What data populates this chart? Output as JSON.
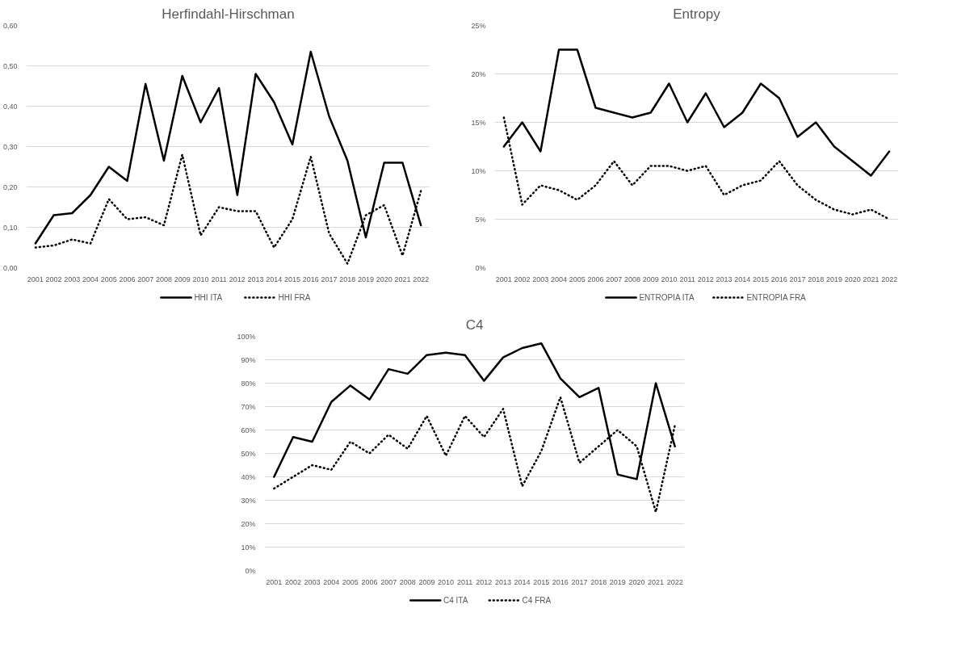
{
  "chart_data": [
    {
      "type": "line",
      "title": "Herfindahl-Hirschman",
      "categories": [
        "2001",
        "2002",
        "2003",
        "2004",
        "2005",
        "2006",
        "2007",
        "2008",
        "2009",
        "2010",
        "2011",
        "2012",
        "2013",
        "2014",
        "2015",
        "2016",
        "2017",
        "2018",
        "2019",
        "2020",
        "2021",
        "2022"
      ],
      "series": [
        {
          "name": "HHI ITA",
          "color": "#000000",
          "line_style": "solid",
          "values": [
            0.06,
            0.13,
            0.135,
            0.18,
            0.25,
            0.215,
            0.455,
            0.265,
            0.475,
            0.36,
            0.445,
            0.18,
            0.48,
            0.41,
            0.305,
            0.535,
            0.375,
            0.265,
            0.075,
            0.26,
            0.26,
            0.105
          ]
        },
        {
          "name": "HHI FRA",
          "color": "#000000",
          "line_style": "dotted",
          "values": [
            0.05,
            0.055,
            0.07,
            0.06,
            0.17,
            0.12,
            0.125,
            0.105,
            0.28,
            0.08,
            0.15,
            0.14,
            0.14,
            0.05,
            0.12,
            0.275,
            0.085,
            0.01,
            0.13,
            0.155,
            0.03,
            0.19
          ]
        }
      ],
      "ylim": [
        0,
        0.6
      ],
      "yticks": [
        {
          "value": 0,
          "label": "0,00"
        },
        {
          "value": 0.1,
          "label": "0,10"
        },
        {
          "value": 0.2,
          "label": "0,20"
        },
        {
          "value": 0.3,
          "label": "0,30"
        },
        {
          "value": 0.4,
          "label": "0,40"
        },
        {
          "value": 0.5,
          "label": "0,50"
        },
        {
          "value": 0.6,
          "label": "0,60"
        }
      ],
      "grid": "y",
      "legend": "bottom"
    },
    {
      "type": "line",
      "title": "Entropy",
      "categories": [
        "2001",
        "2002",
        "2003",
        "2004",
        "2005",
        "2006",
        "2007",
        "2008",
        "2009",
        "2010",
        "2011",
        "2012",
        "2013",
        "2014",
        "2015",
        "2016",
        "2017",
        "2018",
        "2019",
        "2020",
        "2021",
        "2022"
      ],
      "series": [
        {
          "name": "ENTROPIA ITA",
          "color": "#000000",
          "line_style": "solid",
          "values": [
            12.5,
            15,
            12,
            22.5,
            22.5,
            16.5,
            16,
            15.5,
            16,
            19,
            15,
            18,
            14.5,
            16,
            19,
            17.5,
            13.5,
            15,
            12.5,
            11,
            9.5,
            12
          ]
        },
        {
          "name": "ENTROPIA FRA",
          "color": "#000000",
          "line_style": "dotted",
          "values": [
            15.5,
            6.5,
            8.5,
            8,
            7,
            8.5,
            11,
            8.5,
            10.5,
            10.5,
            10,
            10.5,
            7.5,
            8.5,
            9,
            11,
            8.5,
            7,
            6,
            5.5,
            6,
            5
          ]
        }
      ],
      "ylim": [
        0,
        25
      ],
      "yticks": [
        {
          "value": 0,
          "label": "0%"
        },
        {
          "value": 5,
          "label": "5%"
        },
        {
          "value": 10,
          "label": "10%"
        },
        {
          "value": 15,
          "label": "15%"
        },
        {
          "value": 20,
          "label": "20%"
        },
        {
          "value": 25,
          "label": "25%"
        }
      ],
      "grid": "y",
      "legend": "bottom"
    },
    {
      "type": "line",
      "title": "C4",
      "categories": [
        "2001",
        "2002",
        "2003",
        "2004",
        "2005",
        "2006",
        "2007",
        "2008",
        "2009",
        "2010",
        "2011",
        "2012",
        "2013",
        "2014",
        "2015",
        "2016",
        "2017",
        "2018",
        "2019",
        "2020",
        "2021",
        "2022"
      ],
      "series": [
        {
          "name": "C4 ITA",
          "color": "#000000",
          "line_style": "solid",
          "values": [
            40,
            57,
            55,
            72,
            79,
            73,
            86,
            84,
            92,
            93,
            92,
            81,
            91,
            95,
            97,
            82,
            74,
            78,
            41,
            39,
            80,
            53
          ]
        },
        {
          "name": "C4 FRA",
          "color": "#000000",
          "line_style": "dotted",
          "values": [
            35,
            40,
            45,
            43,
            55,
            50,
            58,
            52,
            66,
            49,
            66,
            57,
            69,
            36,
            51,
            74,
            46,
            53,
            60,
            53,
            25,
            62
          ]
        }
      ],
      "ylim": [
        0,
        100
      ],
      "yticks": [
        {
          "value": 0,
          "label": "0%"
        },
        {
          "value": 10,
          "label": "10%"
        },
        {
          "value": 20,
          "label": "20%"
        },
        {
          "value": 30,
          "label": "30%"
        },
        {
          "value": 40,
          "label": "40%"
        },
        {
          "value": 50,
          "label": "50%"
        },
        {
          "value": 60,
          "label": "60%"
        },
        {
          "value": 70,
          "label": "70%"
        },
        {
          "value": 80,
          "label": "80%"
        },
        {
          "value": 90,
          "label": "90%"
        },
        {
          "value": 100,
          "label": "100%"
        }
      ],
      "grid": "y",
      "legend": "bottom"
    }
  ]
}
